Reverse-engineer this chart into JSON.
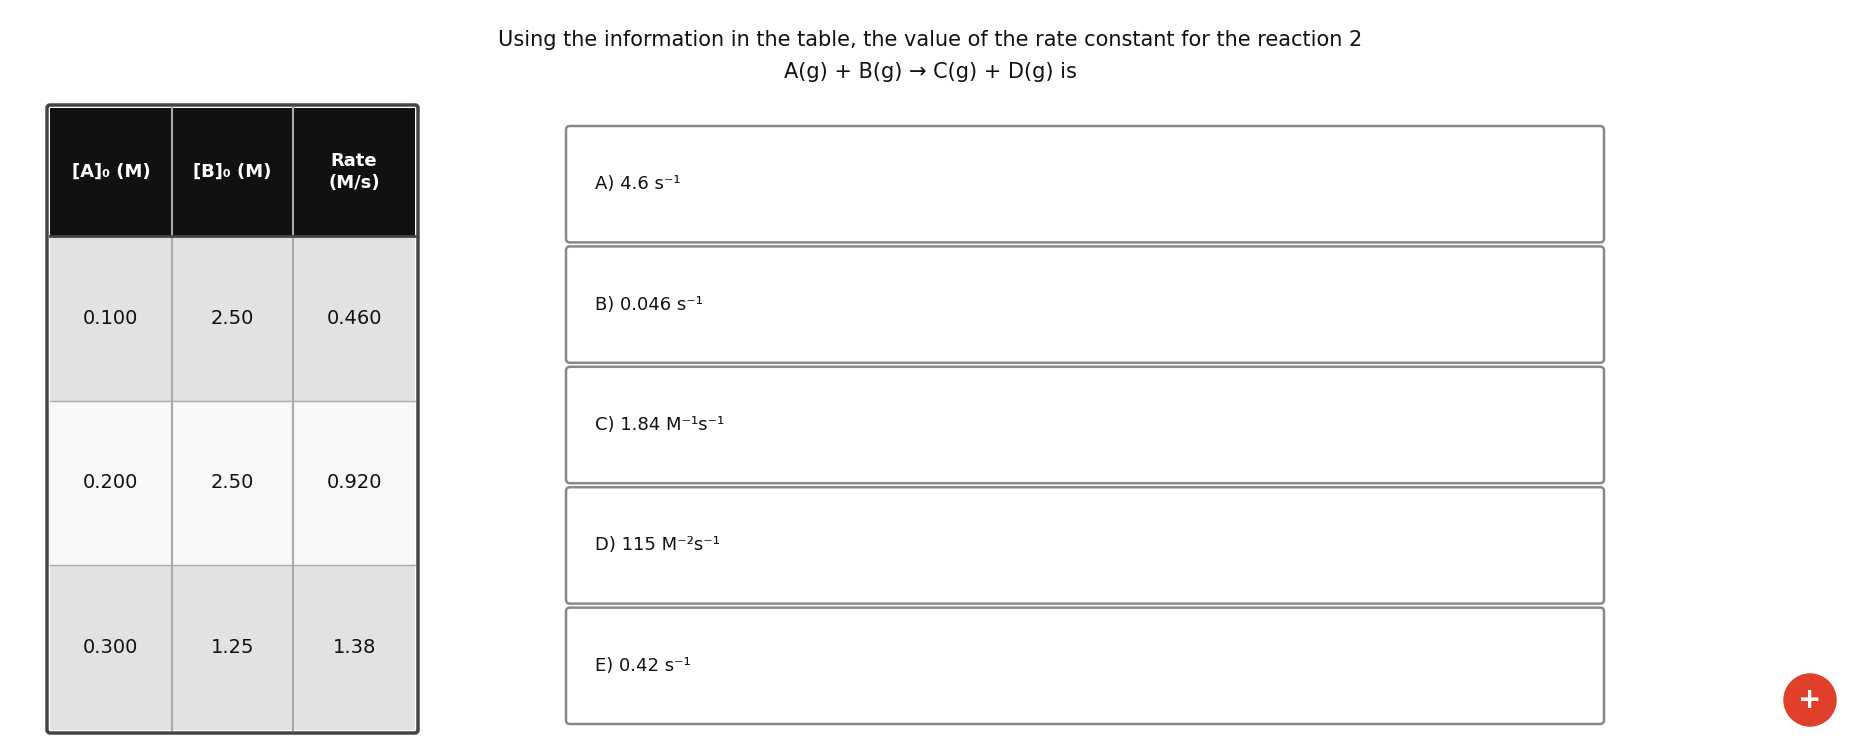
{
  "title_line1": "Using the information in the table, the value of the rate constant for the reaction 2",
  "title_line2": "A(g) + B(g) → C(g) + D(g) is",
  "table_headers": [
    "[A]₀ (M)",
    "[B]₀ (M)",
    "Rate\n(M/s)"
  ],
  "table_rows": [
    [
      "0.100",
      "2.50",
      "0.460"
    ],
    [
      "0.200",
      "2.50",
      "0.920"
    ],
    [
      "0.300",
      "1.25",
      "1.38"
    ]
  ],
  "options": [
    "A) 4.6 s⁻¹",
    "B) 0.046 s⁻¹",
    "C) 1.84 M⁻¹s⁻¹",
    "D) 115 M⁻²s⁻¹",
    "E) 0.42 s⁻¹"
  ],
  "bg_color": "#ffffff",
  "header_bg": "#111111",
  "header_text_color": "#ffffff",
  "row_bg_odd": "#e2e2e2",
  "row_bg_even": "#f8f8f8",
  "table_border_color": "#444444",
  "table_inner_divider": "#aaaaaa",
  "option_box_border": "#888888",
  "option_text_color": "#111111",
  "title_color": "#111111",
  "plus_button_color": "#e0402a",
  "title_fontsize": 15,
  "table_data_fontsize": 14,
  "header_fontsize": 13,
  "option_fontsize": 13
}
